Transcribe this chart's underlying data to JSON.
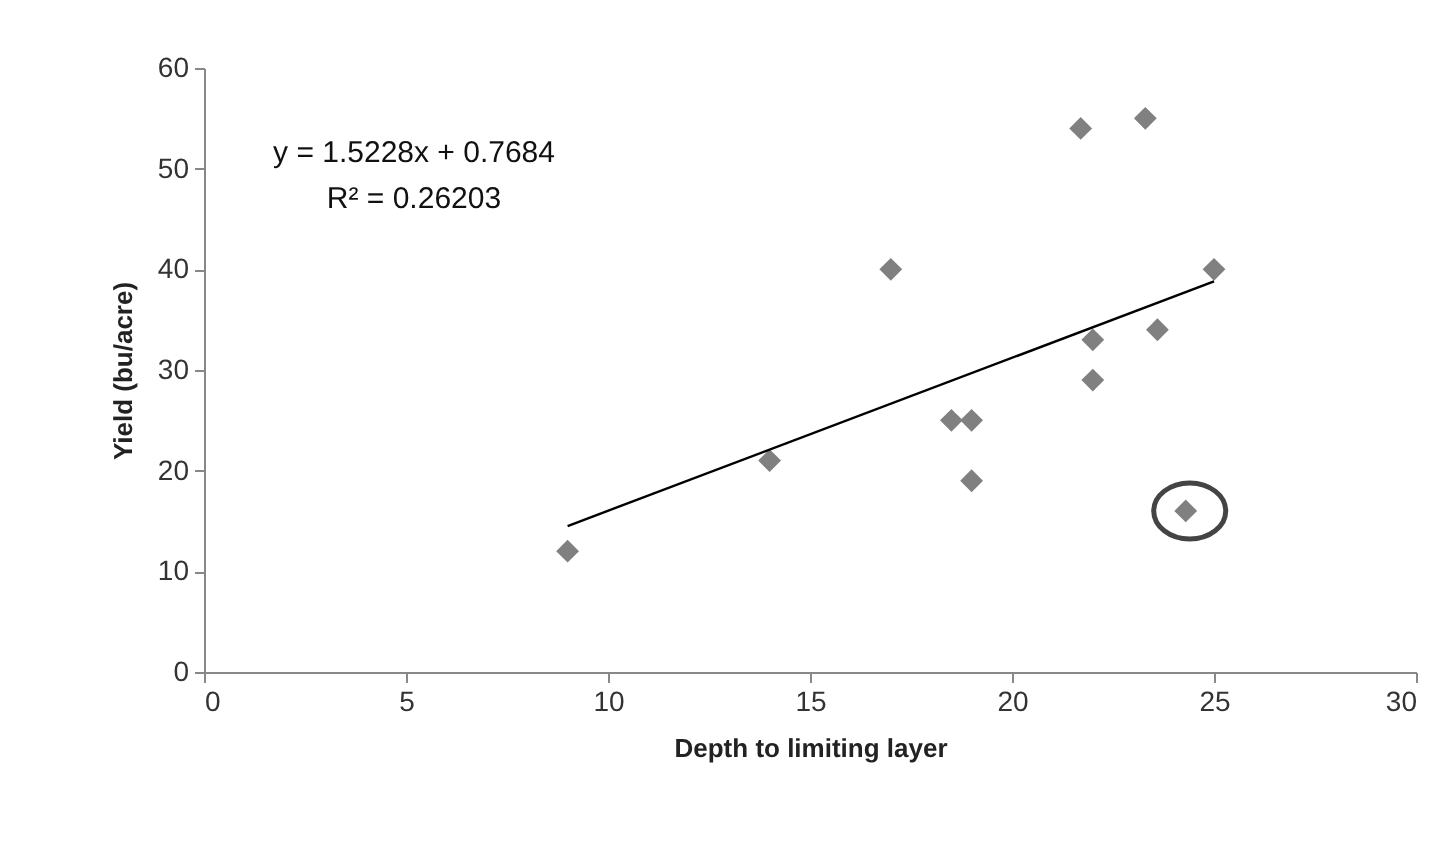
{
  "chart_data": {
    "type": "scatter",
    "xlabel": "Depth to limiting layer",
    "ylabel": "Yield (bu/acre)",
    "xlim": [
      0,
      30
    ],
    "xticks": [
      0,
      5,
      10,
      15,
      20,
      25,
      30
    ],
    "ylim": [
      0,
      60
    ],
    "yticks": [
      0,
      10,
      20,
      30,
      40,
      50,
      60
    ],
    "grid": false,
    "annotations": [
      "y = 1.5228x + 0.7684",
      "R² = 0.26203"
    ],
    "series": [
      {
        "marker": "diamond",
        "color": "#808080",
        "x": [
          9,
          14,
          17,
          18.5,
          19,
          19,
          21.7,
          22,
          22,
          23.3,
          23.6,
          24.3,
          25
        ],
        "values": [
          12,
          21,
          40,
          25,
          25,
          19,
          54,
          33,
          29,
          55,
          34,
          16,
          40
        ]
      },
      {
        "type": "line",
        "color": "#000000",
        "x": [
          9,
          25
        ],
        "values": [
          14.5,
          38.8
        ]
      }
    ]
  }
}
